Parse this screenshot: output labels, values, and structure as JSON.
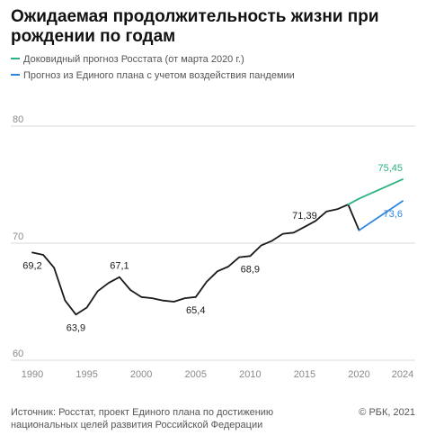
{
  "title": "Ожидаемая продолжительность жизни при рождении по годам",
  "legend": [
    {
      "label": "Доковидный прогноз Росстата (от марта 2020 г.)",
      "color": "#2bb37f"
    },
    {
      "label": "Прогноз из Единого плана с учетом воздействия пандемии",
      "color": "#2e86de"
    }
  ],
  "source": "Источник: Росстат, проект Единого плана по достижению национальных целей развития Российской Федерации",
  "credit": "© РБК, 2021",
  "chart_data": {
    "type": "line",
    "xlim": [
      1990,
      2024
    ],
    "ylim": [
      60,
      80
    ],
    "x_ticks": [
      1990,
      1995,
      2000,
      2005,
      2010,
      2015,
      2020,
      2024
    ],
    "y_ticks": [
      60,
      70,
      80
    ],
    "grid": "horizontal",
    "legend_position": "top-left",
    "series": [
      {
        "name": "",
        "color": "#1a1a1a",
        "x": [
          1990,
          1991,
          1992,
          1993,
          1994,
          1995,
          1996,
          1997,
          1998,
          1999,
          2000,
          2001,
          2002,
          2003,
          2004,
          2005,
          2006,
          2007,
          2008,
          2009,
          2010,
          2011,
          2012,
          2013,
          2014,
          2015,
          2016,
          2017,
          2018,
          2019,
          2020
        ],
        "y": [
          69.2,
          69.0,
          67.9,
          65.1,
          63.9,
          64.5,
          65.9,
          66.6,
          67.1,
          66.0,
          65.4,
          65.3,
          65.1,
          65.0,
          65.3,
          65.4,
          66.7,
          67.6,
          68.0,
          68.8,
          68.9,
          69.8,
          70.2,
          70.8,
          70.9,
          71.39,
          71.9,
          72.7,
          72.9,
          73.3,
          71.1
        ]
      },
      {
        "name": "Доковидный прогноз Росстата (от марта 2020 г.)",
        "color": "#2bb37f",
        "x": [
          2019,
          2020,
          2024
        ],
        "y": [
          73.3,
          73.8,
          75.45
        ]
      },
      {
        "name": "Прогноз из Единого плана с учетом воздействия пандемии",
        "color": "#2e86de",
        "x": [
          2020,
          2024
        ],
        "y": [
          71.1,
          73.6
        ]
      }
    ],
    "annotations": [
      {
        "x": 1990,
        "y": 69.2,
        "text": "69,2",
        "pos": "below",
        "color": "#1a1a1a"
      },
      {
        "x": 1994,
        "y": 63.9,
        "text": "63,9",
        "pos": "below",
        "color": "#1a1a1a"
      },
      {
        "x": 1998,
        "y": 67.1,
        "text": "67,1",
        "pos": "above",
        "color": "#1a1a1a"
      },
      {
        "x": 2005,
        "y": 65.4,
        "text": "65,4",
        "pos": "below",
        "color": "#1a1a1a"
      },
      {
        "x": 2010,
        "y": 68.9,
        "text": "68,9",
        "pos": "below",
        "color": "#1a1a1a"
      },
      {
        "x": 2015,
        "y": 71.39,
        "text": "71,39",
        "pos": "above",
        "color": "#1a1a1a"
      },
      {
        "x": 2024,
        "y": 75.45,
        "text": "75,45",
        "pos": "above",
        "color": "#2bb37f"
      },
      {
        "x": 2024,
        "y": 73.6,
        "text": "73,6",
        "pos": "below",
        "color": "#2e86de"
      }
    ]
  }
}
